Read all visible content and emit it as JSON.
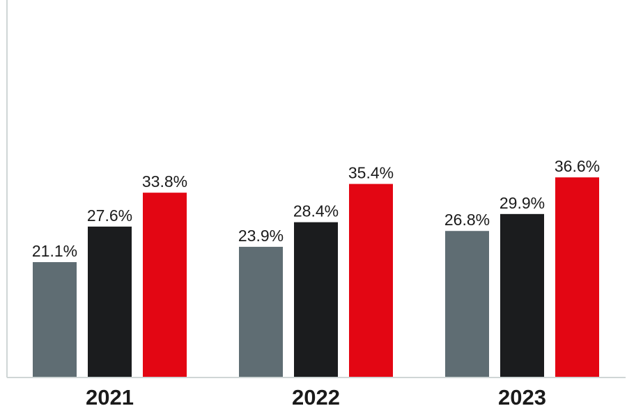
{
  "chart_data": {
    "type": "bar",
    "categories": [
      "2021",
      "2022",
      "2023"
    ],
    "series": [
      {
        "values": [
          21.1,
          23.9,
          26.8
        ],
        "labels": [
          "21.1%",
          "23.9%",
          "26.8%"
        ],
        "color": "#5f6d73"
      },
      {
        "values": [
          27.6,
          28.4,
          29.9
        ],
        "labels": [
          "27.6%",
          "28.4%",
          "29.9%"
        ],
        "color": "#1b1c1e"
      },
      {
        "values": [
          33.8,
          35.4,
          36.6
        ],
        "labels": [
          "33.8%",
          "35.4%",
          "36.6%"
        ],
        "color": "#e30613"
      }
    ],
    "title": "",
    "xlabel": "",
    "ylabel": "",
    "ylim": [
      0,
      38
    ],
    "grid": false,
    "legend": "none",
    "axis_color": "#cfd6d6"
  }
}
